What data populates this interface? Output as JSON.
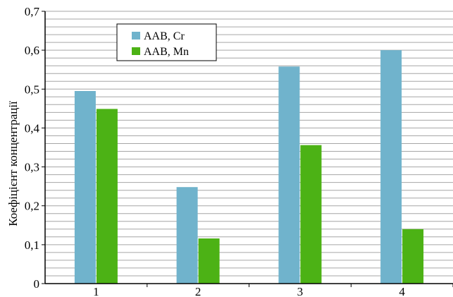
{
  "chart_data": {
    "type": "bar",
    "categories": [
      "1",
      "2",
      "3",
      "4"
    ],
    "series": [
      {
        "name": "ААВ, Cr",
        "values": [
          0.495,
          0.248,
          0.558,
          0.6
        ],
        "color": "#70b3cc"
      },
      {
        "name": "ААВ, Mn",
        "values": [
          0.449,
          0.116,
          0.356,
          0.14
        ],
        "color": "#4cb215"
      }
    ],
    "title": "",
    "xlabel": "",
    "ylabel": "Коефіцієнт концентрації",
    "ylim": [
      0,
      0.7
    ],
    "yticks": [
      "0",
      "0,1",
      "0,2",
      "0,3",
      "0,4",
      "0,5",
      "0,6",
      "0,7"
    ],
    "minor_grid_step": 0.02,
    "grid": true,
    "legend_position": "top-left"
  }
}
